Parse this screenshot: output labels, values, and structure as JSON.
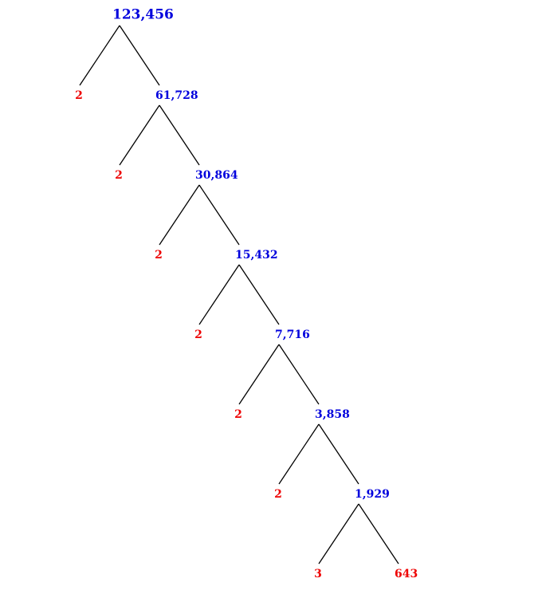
{
  "tree": {
    "root": "123,456",
    "levels": [
      {
        "left": "2",
        "right": "61,728"
      },
      {
        "left": "2",
        "right": "30,864"
      },
      {
        "left": "2",
        "right": "15,432"
      },
      {
        "left": "2",
        "right": "7,716"
      },
      {
        "left": "2",
        "right": "3,858"
      },
      {
        "left": "2",
        "right": "1,929"
      },
      {
        "left": "3",
        "right": "643"
      }
    ]
  }
}
